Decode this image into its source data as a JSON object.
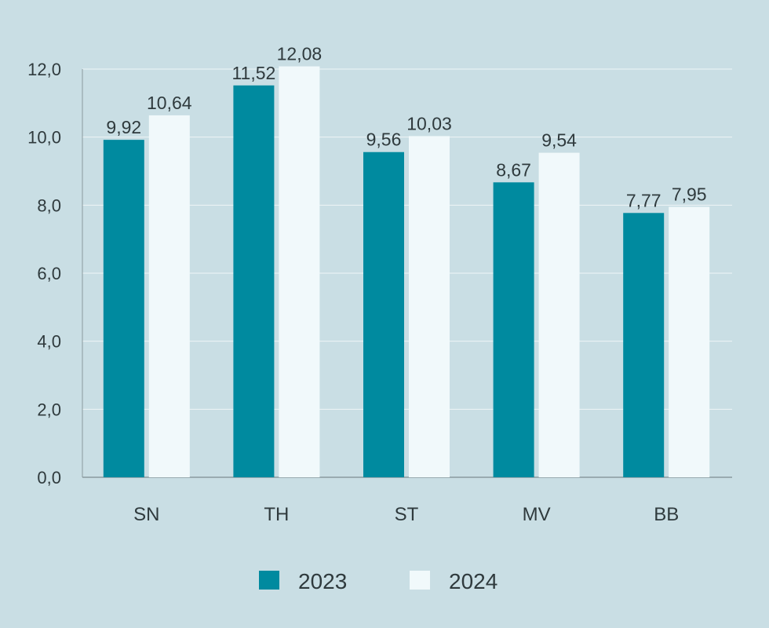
{
  "chart_data": {
    "type": "bar",
    "title": "",
    "xlabel": "",
    "ylabel": "",
    "ylim": [
      0,
      12
    ],
    "yticks": [
      "0,0",
      "2,0",
      "4,0",
      "6,0",
      "8,0",
      "10,0",
      "12,0"
    ],
    "grid": true,
    "legend_position": "bottom",
    "categories": [
      "SN",
      "TH",
      "ST",
      "MV",
      "BB"
    ],
    "series": [
      {
        "name": "2023",
        "color": "#008a9f",
        "values": [
          9.92,
          11.52,
          9.56,
          8.67,
          7.77
        ],
        "labels": [
          "9,92",
          "11,52",
          "9,56",
          "8,67",
          "7,77"
        ]
      },
      {
        "name": "2024",
        "color": "#f1f9fb",
        "values": [
          10.64,
          12.08,
          10.03,
          9.54,
          7.95
        ],
        "labels": [
          "10,64",
          "12,08",
          "10,03",
          "9,54",
          "7,95"
        ]
      }
    ]
  }
}
